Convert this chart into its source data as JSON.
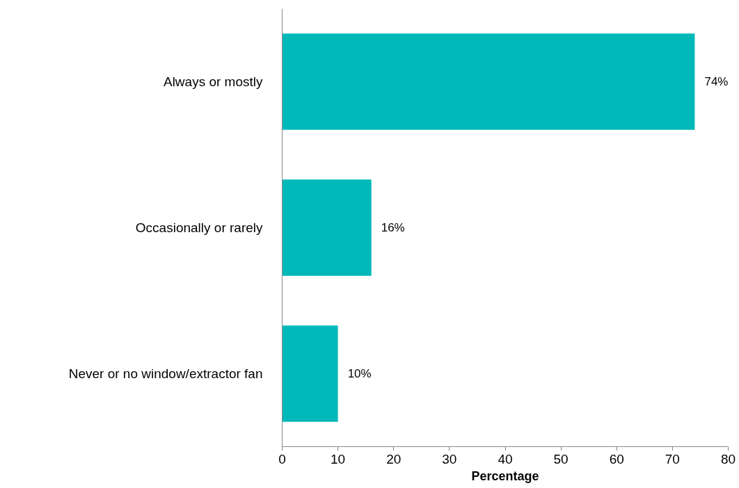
{
  "chart_data": {
    "type": "bar",
    "orientation": "horizontal",
    "xlabel": "Percentage",
    "categories": [
      "Always or mostly",
      "Occasionally or rarely",
      "Never or no window/extractor fan"
    ],
    "values": [
      74,
      16,
      10
    ],
    "color": "#00b8b8",
    "value_labels": [
      "74%",
      "16%",
      "10%"
    ],
    "xlim": [
      0,
      80
    ],
    "xticks": [
      0,
      10,
      20,
      30,
      40,
      50,
      60,
      70,
      80
    ],
    "grid": false
  }
}
